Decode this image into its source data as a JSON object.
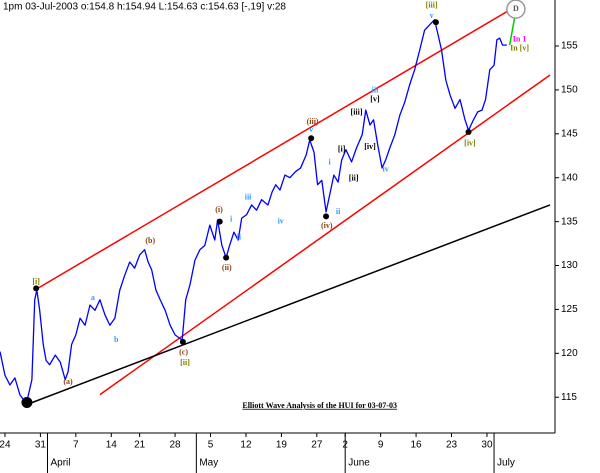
{
  "chart_data": {
    "type": "line",
    "header": "1pm 03-Jul-2003  o:154.8 h:154.94 L:154.63 c:154.63 [-,19] v:28",
    "title": "Elliott Wave Analysis of the HUI for 03-07-03",
    "title_position": {
      "x": 44.4,
      "y": 114.0
    },
    "color": "#0000ff",
    "x": [
      -0.7,
      0,
      0.7,
      1.4,
      2.1,
      2.8,
      3.2,
      3.8,
      4.2,
      4.5,
      4.9,
      5.4,
      5.8,
      6.3,
      7.1,
      7.8,
      8.5,
      8.9,
      9.4,
      10.0,
      10.6,
      11.3,
      12.0,
      12.7,
      13.4,
      14.1,
      14.8,
      15.5,
      16.2,
      16.9,
      17.6,
      18.3,
      19.0,
      19.7,
      20.2,
      20.7,
      21.3,
      21.9,
      22.6,
      23.3,
      24.0,
      25.0,
      25.5,
      26.1,
      26.8,
      27.5,
      28.2,
      28.9,
      29.6,
      30.0,
      30.6,
      31.2,
      31.7,
      32.3,
      32.9,
      33.4,
      34.1,
      34.8,
      35.5,
      36.2,
      37.1,
      37.7,
      38.2,
      38.8,
      39.5,
      40.2,
      41.0,
      41.7,
      42.5,
      43.0,
      43.6,
      44.1,
      44.7,
      45.3,
      45.8,
      46.4,
      47.0,
      47.5,
      48.1,
      48.9,
      49.6,
      50.4,
      50.9,
      51.5,
      52.0,
      52.6,
      53.2,
      53.7,
      54.3,
      55.0,
      55.7,
      56.4,
      57.1,
      57.8,
      58.5,
      59.2,
      59.9,
      60.6,
      61.1,
      61.6,
      62.2,
      62.8,
      63.5,
      64.2,
      64.9,
      65.4,
      66.1,
      66.7,
      67.3,
      67.8,
      68.4,
      69.0,
      69.4,
      69.8,
      70.2,
      70.8
    ],
    "values": [
      120.2,
      117.5,
      116.4,
      117.2,
      115.3,
      114.5,
      114.9,
      117.0,
      126.1,
      127.2,
      124.9,
      121.0,
      119.2,
      118.7,
      119.8,
      119.0,
      117.0,
      117.9,
      121.0,
      122.1,
      124.0,
      123.2,
      125.5,
      124.9,
      126.1,
      124.4,
      123.2,
      124.0,
      127.2,
      128.9,
      130.4,
      129.7,
      131.2,
      131.8,
      130.4,
      129.5,
      127.2,
      126.1,
      124.9,
      123.2,
      122.1,
      121.5,
      126.1,
      127.8,
      130.6,
      131.8,
      132.3,
      134.6,
      132.9,
      135.2,
      132.3,
      130.9,
      132.3,
      133.8,
      132.9,
      135.4,
      135.8,
      136.9,
      136.3,
      137.5,
      136.9,
      138.4,
      139.2,
      138.6,
      140.3,
      140.0,
      140.7,
      141.1,
      142.6,
      144.3,
      142.9,
      139.2,
      139.7,
      136.1,
      138.0,
      140.3,
      139.5,
      142.0,
      143.2,
      141.8,
      143.4,
      144.9,
      147.7,
      146.0,
      146.6,
      143.7,
      141.1,
      142.0,
      143.4,
      144.9,
      147.1,
      148.6,
      150.6,
      152.3,
      154.5,
      156.8,
      157.4,
      158.0,
      156.3,
      154.5,
      151.1,
      149.4,
      147.9,
      148.9,
      146.6,
      145.4,
      146.6,
      147.5,
      147.7,
      148.9,
      152.3,
      152.8,
      155.7,
      155.9,
      155.1,
      155.1
    ],
    "xlim": [
      -0.7,
      77.6
    ],
    "ylim": [
      111.04,
      160.24
    ],
    "yticks": [
      115,
      120,
      125,
      130,
      135,
      140,
      145,
      150,
      155
    ],
    "xticks": [
      {
        "value": 0,
        "label": "24"
      },
      {
        "value": 5,
        "label": "31"
      },
      {
        "value": 10,
        "label": "7"
      },
      {
        "value": 15,
        "label": "14"
      },
      {
        "value": 19,
        "label": "21"
      },
      {
        "value": 24,
        "label": "28"
      },
      {
        "value": 29,
        "label": "5"
      },
      {
        "value": 34,
        "label": "12"
      },
      {
        "value": 39,
        "label": "19"
      },
      {
        "value": 44,
        "label": "27"
      },
      {
        "value": 48,
        "label": "2"
      },
      {
        "value": 53,
        "label": "9"
      },
      {
        "value": 58,
        "label": "16"
      },
      {
        "value": 63,
        "label": "23"
      },
      {
        "value": 68,
        "label": "30"
      }
    ],
    "month_ticks": [
      {
        "value": 6,
        "label": "April"
      },
      {
        "value": 27,
        "label": "May"
      },
      {
        "value": 48,
        "label": "June"
      },
      {
        "value": 69,
        "label": "July"
      }
    ],
    "lines": [
      {
        "x": [
          4.2,
          71.2
        ],
        "y": [
          127.2,
          159.1
        ],
        "color": "#ff0000"
      },
      {
        "x": [
          13.4,
          76.9
        ],
        "y": [
          115.3,
          151.7
        ],
        "color": "#ff0000"
      },
      {
        "x": [
          3.2,
          76.9
        ],
        "y": [
          114.2,
          136.9
        ],
        "color": "#000000"
      },
      {
        "x": [
          71.2,
          71.9
        ],
        "y": [
          155.1,
          158.2
        ],
        "color": "#00cc00"
      }
    ],
    "pivots": {
      "x": [
        3.1,
        4.4,
        25.1,
        30.3,
        31.2,
        43.2,
        45.3,
        60.8,
        65.4
      ],
      "y": [
        114.4,
        127.4,
        121.3,
        135.0,
        130.9,
        144.5,
        135.6,
        157.7,
        145.2
      ],
      "color": "#000000"
    },
    "annotations": [
      {
        "text": "[i]",
        "x": 4.4,
        "y": 128.1,
        "color": "#808000"
      },
      {
        "text": "(a)",
        "x": 8.9,
        "y": 116.7,
        "color": "#8b4513"
      },
      {
        "text": "a",
        "x": 12.4,
        "y": 126.3,
        "color": "#3399ff"
      },
      {
        "text": "b",
        "x": 15.7,
        "y": 121.5,
        "color": "#3399ff"
      },
      {
        "text": "(b)",
        "x": 20.5,
        "y": 132.8,
        "color": "#8b4513"
      },
      {
        "text": "(c)",
        "x": 25.2,
        "y": 120.1,
        "color": "#8b4513"
      },
      {
        "text": "[ii]",
        "x": 25.4,
        "y": 118.9,
        "color": "#808000"
      },
      {
        "text": "(i)",
        "x": 30.2,
        "y": 136.3,
        "color": "#8b4513"
      },
      {
        "text": "(ii)",
        "x": 31.3,
        "y": 129.7,
        "color": "#8b4513"
      },
      {
        "text": "i",
        "x": 31.9,
        "y": 135.2,
        "color": "#3399ff"
      },
      {
        "text": "ii",
        "x": 33.0,
        "y": 133.2,
        "color": "#3399ff"
      },
      {
        "text": "iii",
        "x": 34.3,
        "y": 137.7,
        "color": "#3399ff"
      },
      {
        "text": "iv",
        "x": 38.9,
        "y": 135.0,
        "color": "#3399ff"
      },
      {
        "text": "v",
        "x": 43.2,
        "y": 145.4,
        "color": "#3399ff"
      },
      {
        "text": "(iii)",
        "x": 43.4,
        "y": 146.3,
        "color": "#8b4513"
      },
      {
        "text": "(iv)",
        "x": 45.4,
        "y": 134.5,
        "color": "#8b4513"
      },
      {
        "text": "ii",
        "x": 47.0,
        "y": 136.1,
        "color": "#3399ff"
      },
      {
        "text": "i",
        "x": 45.8,
        "y": 141.7,
        "color": "#3399ff"
      },
      {
        "text": "[i]",
        "x": 47.5,
        "y": 143.2,
        "color": "#000000"
      },
      {
        "text": "[ii]",
        "x": 49.2,
        "y": 139.9,
        "color": "#000000"
      },
      {
        "text": "[iii]",
        "x": 49.6,
        "y": 147.4,
        "color": "#000000"
      },
      {
        "text": "[iv]",
        "x": 51.5,
        "y": 143.5,
        "color": "#000000"
      },
      {
        "text": "[v]",
        "x": 52.2,
        "y": 148.9,
        "color": "#000000"
      },
      {
        "text": "iii",
        "x": 52.2,
        "y": 149.9,
        "color": "#3399ff"
      },
      {
        "text": "iv",
        "x": 53.7,
        "y": 140.9,
        "color": "#3399ff"
      },
      {
        "text": "[iii]",
        "x": 60.2,
        "y": 159.6,
        "color": "#808000"
      },
      {
        "text": "v",
        "x": 60.2,
        "y": 158.4,
        "color": "#3399ff"
      },
      {
        "text": "[iv]",
        "x": 65.6,
        "y": 143.9,
        "color": "#808000"
      },
      {
        "text": "In 1",
        "x": 72.6,
        "y": 155.7,
        "color": "#ff00ff"
      },
      {
        "text": "In [v]",
        "x": 72.6,
        "y": 154.7,
        "color": "#808000"
      },
      {
        "text": "D",
        "x": 71.8,
        "y": 159.2,
        "color": "#555555"
      }
    ]
  }
}
